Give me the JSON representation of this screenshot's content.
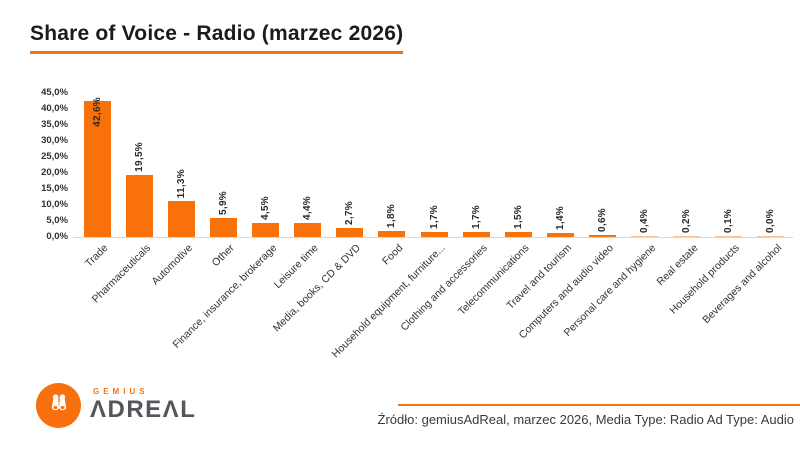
{
  "title": {
    "text": "Share of Voice - Radio (marzec 2026)"
  },
  "colors": {
    "accent_orange": "#F0741E",
    "bar_orange": "#F87209",
    "axis_line": "#D9D9D9",
    "title_text": "#1B1B1B",
    "logo_gray": "#54565B"
  },
  "chart_data": {
    "type": "bar",
    "title": "Share of Voice - Radio (marzec 2026)",
    "categories": [
      "Trade",
      "Pharmaceuticals",
      "Automotive",
      "Other",
      "Finance, insurance, brokerage",
      "Leisure time",
      "Media, books, CD & DVD",
      "Food",
      "Household equipment, furniture...",
      "Clothing and accessories",
      "Telecommunications",
      "Travel and tourism",
      "Computers and audio video",
      "Personal care and hygiene",
      "Real estate",
      "Household products",
      "Beverages and alcohol"
    ],
    "values": [
      42.6,
      19.5,
      11.3,
      5.9,
      4.5,
      4.4,
      2.7,
      1.8,
      1.7,
      1.7,
      1.5,
      1.4,
      0.6,
      0.4,
      0.2,
      0.1,
      0.0
    ],
    "value_labels": [
      "42,6%",
      "19,5%",
      "11,3%",
      "5,9%",
      "4,5%",
      "4,4%",
      "2,7%",
      "1,8%",
      "1,7%",
      "1,7%",
      "1,5%",
      "1,4%",
      "0,6%",
      "0,4%",
      "0,2%",
      "0,1%",
      "0,0%"
    ],
    "xlabel": "",
    "ylabel": "",
    "ylim": [
      0,
      45
    ],
    "ytick_values": [
      0,
      5,
      10,
      15,
      20,
      25,
      30,
      35,
      40,
      45
    ],
    "ytick_labels": [
      "0,0%",
      "5,0%",
      "10,0%",
      "15,0%",
      "20,0%",
      "25,0%",
      "30,0%",
      "35,0%",
      "40,0%",
      "45,0%"
    ],
    "grid": false,
    "legend": null,
    "bar_color": "#F87209",
    "value_label_rotation": 90,
    "category_label_rotation": 45
  },
  "logo": {
    "brand_top": "GEMIUS",
    "brand_main": "ADREAL",
    "brand_main_display": "ΛDREΛL",
    "icon": "binoculars-icon"
  },
  "footer": {
    "source_text": "Źródło: gemiusAdReal, marzec 2026, Media Type: Radio Ad Type: Audio"
  }
}
